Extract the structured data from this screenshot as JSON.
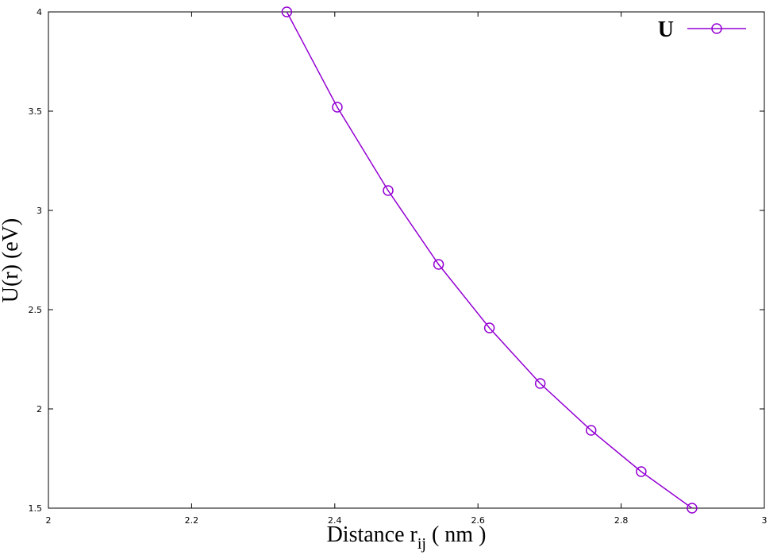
{
  "chart_data": {
    "type": "line",
    "xlabel": [
      "Distance r",
      "ij",
      " ( nm )"
    ],
    "ylabel": "U(r) (eV)",
    "x": [
      2.333,
      2.4035,
      2.4745,
      2.545,
      2.616,
      2.687,
      2.758,
      2.828,
      2.899
    ],
    "series": [
      {
        "name": "U",
        "color": "#9400d3",
        "values": [
          4.0,
          3.52,
          3.1,
          2.728,
          2.408,
          2.128,
          1.892,
          1.684,
          1.5
        ]
      }
    ],
    "xlim": [
      2,
      3
    ],
    "xticks": [
      2,
      2.2,
      2.4,
      2.6,
      2.8,
      3
    ],
    "ylim": [
      1.5,
      4
    ],
    "yticks": [
      1.5,
      2,
      2.5,
      3,
      3.5,
      4
    ],
    "legend": "top-right"
  }
}
